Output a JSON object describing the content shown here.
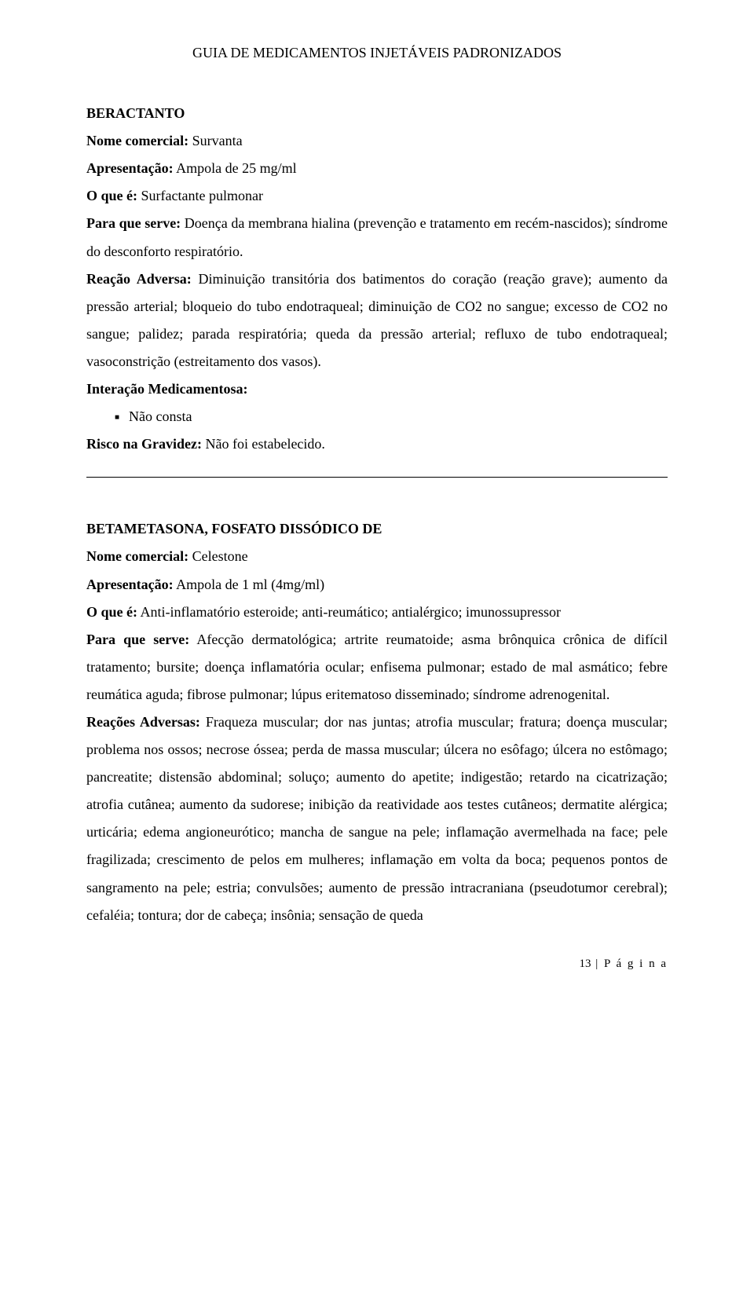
{
  "header": "GUIA DE MEDICAMENTOS INJETÁVEIS PADRONIZADOS",
  "drug1": {
    "title": "BERACTANTO",
    "commercial_label": "Nome comercial:",
    "commercial_value": " Survanta",
    "presentation_label": "Apresentação:",
    "presentation_value": " Ampola de 25 mg/ml",
    "what_label": "O que é:",
    "what_value": " Surfactante pulmonar",
    "indication_label": "Para que serve:",
    "indication_value": " Doença da membrana hialina (prevenção e tratamento em recém-nascidos); síndrome do desconforto respiratório.",
    "reaction_label": "Reação Adversa:",
    "reaction_value": " Diminuição transitória dos batimentos do coração (reação grave); aumento da pressão arterial; bloqueio do tubo endotraqueal; diminuição de CO2 no sangue; excesso de CO2 no sangue; palidez; parada respiratória; queda da pressão arterial; refluxo de tubo endotraqueal; vasoconstrição (estreitamento dos vasos).",
    "interaction_label": "Interação Medicamentosa:",
    "interaction_item": "Não consta",
    "pregnancy_label": "Risco na Gravidez:",
    "pregnancy_value": " Não foi estabelecido."
  },
  "drug2": {
    "title": "BETAMETASONA, FOSFATO DISSÓDICO DE",
    "commercial_label": "Nome comercial:",
    "commercial_value": " Celestone",
    "presentation_label": "Apresentação:",
    "presentation_value": " Ampola de 1 ml (4mg/ml)",
    "what_label": "O que é:",
    "what_value": " Anti-inflamatório esteroide; anti-reumático; antialérgico; imunossupressor",
    "indication_label": "Para que serve:",
    "indication_value": " Afecção dermatológica; artrite reumatoide; asma brônquica crônica de difícil tratamento; bursite; doença inflamatória ocular; enfisema pulmonar; estado de mal asmático; febre reumática aguda; fibrose pulmonar; lúpus eritematoso disseminado; síndrome adrenogenital.",
    "reaction_label": "Reações Adversas:",
    "reaction_value": " Fraqueza muscular; dor nas juntas; atrofia muscular; fratura; doença muscular; problema nos ossos; necrose óssea; perda de massa muscular; úlcera no esôfago; úlcera no estômago; pancreatite; distensão abdominal; soluço; aumento do apetite; indigestão; retardo na cicatrização; atrofia cutânea; aumento da sudorese; inibição da reatividade aos testes cutâneos; dermatite alérgica; urticária; edema angioneurótico; mancha de sangue na pele; inflamação avermelhada na face; pele fragilizada; crescimento de pelos em mulheres; inflamação em volta da boca; pequenos pontos de sangramento na pele; estria; convulsões; aumento de pressão intracraniana (pseudotumor cerebral); cefaléia; tontura; dor de cabeça; insônia; sensação de queda"
  },
  "footer": {
    "page_number": "13",
    "page_label": " | P á g i n a"
  }
}
